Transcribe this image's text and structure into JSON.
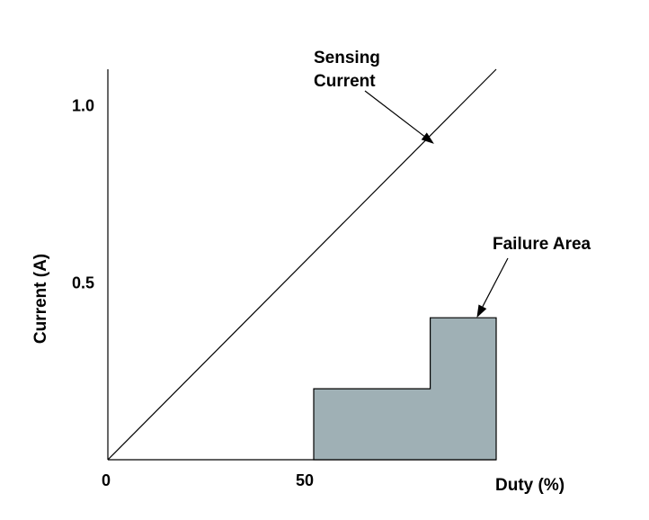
{
  "chart_data": {
    "type": "area",
    "title": "",
    "xlabel": "Duty (%)",
    "ylabel": "Current (A)",
    "xlim": [
      0,
      100
    ],
    "ylim": [
      0,
      1.1
    ],
    "x_ticks": [
      {
        "value": 0,
        "label": "0"
      },
      {
        "value": 50,
        "label": "50"
      }
    ],
    "y_ticks": [
      {
        "value": 0.5,
        "label": "0.5"
      },
      {
        "value": 1.0,
        "label": "1.0"
      }
    ],
    "series": [
      {
        "name": "Sensing Current",
        "type": "line",
        "points": [
          [
            0,
            0
          ],
          [
            100,
            1.1
          ]
        ]
      },
      {
        "name": "Failure Area",
        "type": "area",
        "points": [
          [
            53,
            0
          ],
          [
            53,
            0.2
          ],
          [
            83,
            0.2
          ],
          [
            83,
            0.4
          ],
          [
            100,
            0.4
          ],
          [
            100,
            0
          ]
        ]
      }
    ],
    "annotations": [
      {
        "text_lines": [
          "Sensing",
          "Current"
        ],
        "target": [
          84,
          0.89
        ]
      },
      {
        "text_lines": [
          "Failure Area"
        ],
        "target": [
          95,
          0.4
        ]
      }
    ],
    "colors": {
      "line": "#000000",
      "area_fill": "#9fb0b5",
      "area_stroke": "#000000"
    },
    "grid": false,
    "legend": "none"
  }
}
